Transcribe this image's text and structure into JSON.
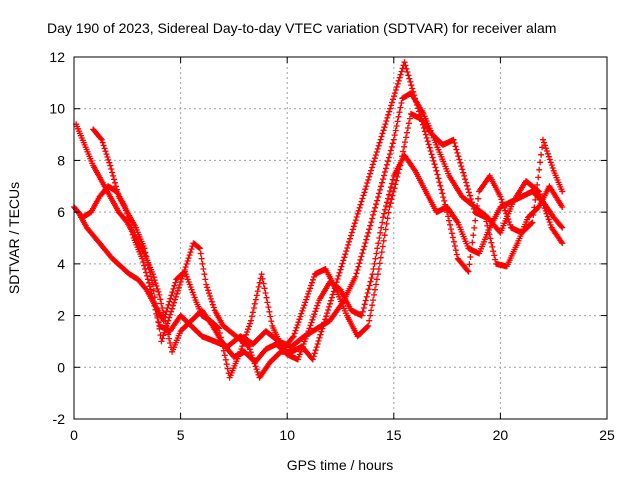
{
  "chart_data": {
    "type": "scatter",
    "title": "Day 190 of 2023, Sidereal Day-to-day VTEC variation (SDTVAR) for receiver alam",
    "xlabel": "GPS time / hours",
    "ylabel": "SDTVAR / TECUs",
    "xlim": [
      0,
      25
    ],
    "ylim": [
      -2,
      12
    ],
    "x_ticks": [
      "0",
      "5",
      "10",
      "15",
      "20",
      "25"
    ],
    "y_ticks": [
      "-2",
      "0",
      "2",
      "4",
      "6",
      "8",
      "10",
      "12"
    ],
    "grid": true,
    "legend": "none",
    "marker": "+",
    "color": "#ff0000",
    "series": [
      {
        "name": "trace-1",
        "x": [
          0.0,
          0.4,
          0.8,
          1.2,
          1.6,
          2.0,
          2.4,
          2.8,
          3.2,
          3.6,
          4.0,
          4.5,
          5.0,
          5.5,
          6.0,
          6.6,
          7.2,
          7.8,
          8.4,
          9.0,
          9.6,
          10.2,
          10.8,
          11.4,
          12.0,
          12.6,
          13.2,
          13.8,
          14.4,
          15.0,
          15.4,
          15.8,
          16.4,
          17.0,
          17.6,
          18.2,
          18.8,
          19.4,
          20.0,
          20.6,
          21.2,
          21.8,
          22.4,
          22.9
        ],
        "y": [
          6.2,
          5.8,
          6.0,
          6.6,
          7.0,
          6.8,
          6.2,
          5.0,
          4.2,
          3.0,
          1.6,
          1.4,
          2.0,
          1.6,
          1.2,
          1.0,
          0.8,
          1.2,
          0.9,
          1.4,
          1.0,
          0.8,
          1.2,
          1.5,
          1.8,
          2.5,
          3.5,
          5.2,
          7.0,
          8.8,
          10.4,
          10.6,
          9.8,
          8.6,
          7.4,
          6.6,
          6.2,
          5.8,
          5.2,
          6.4,
          7.2,
          6.8,
          5.4,
          4.8
        ]
      },
      {
        "name": "trace-2",
        "x": [
          0.1,
          0.5,
          0.9,
          1.3,
          1.7,
          2.1,
          2.5,
          2.9,
          3.3,
          3.7,
          4.0,
          4.6,
          5.0,
          5.5,
          6.0,
          6.5,
          7.0,
          7.5,
          8.0,
          8.5,
          9.0,
          9.5,
          10.0,
          10.5,
          11.0,
          11.5,
          12.0,
          12.5,
          13.0,
          13.5,
          14.0,
          14.5,
          15.0,
          15.5,
          16.0,
          16.5,
          17.0,
          17.5,
          18.0,
          18.5,
          19.0,
          19.5,
          20.0,
          20.5,
          21.0,
          21.5,
          22.0,
          22.5,
          22.9
        ],
        "y": [
          9.4,
          8.6,
          7.8,
          7.2,
          6.6,
          6.0,
          5.6,
          5.0,
          4.4,
          3.6,
          2.8,
          0.6,
          1.4,
          1.8,
          2.2,
          1.6,
          0.9,
          0.4,
          0.6,
          0.2,
          0.7,
          0.9,
          0.5,
          0.3,
          1.4,
          2.6,
          3.3,
          3.0,
          2.2,
          2.0,
          3.6,
          5.8,
          7.4,
          8.2,
          7.6,
          6.8,
          6.0,
          6.2,
          5.6,
          4.6,
          4.4,
          5.4,
          6.2,
          6.4,
          6.6,
          6.8,
          6.4,
          5.8,
          5.4
        ]
      },
      {
        "name": "trace-3",
        "x": [
          0.2,
          0.6,
          1.0,
          1.4,
          1.8,
          2.2,
          2.6,
          3.0,
          3.4,
          3.8,
          4.2,
          4.8,
          5.2,
          5.7,
          6.0,
          6.4,
          6.8,
          7.3,
          7.8,
          8.3,
          8.8,
          9.3,
          9.8,
          10.3,
          10.8,
          11.3,
          11.8,
          12.3,
          12.8,
          13.3,
          13.8,
          14.3,
          14.8,
          15.3,
          15.8,
          16.3,
          16.8,
          17.3,
          17.8,
          18.3,
          18.8,
          19.3,
          19.8,
          20.3,
          20.8,
          21.3,
          21.8,
          22.3,
          22.9
        ],
        "y": [
          6.0,
          5.4,
          5.0,
          4.6,
          4.2,
          3.9,
          3.6,
          3.4,
          3.0,
          2.4,
          1.8,
          3.4,
          3.7,
          2.6,
          2.0,
          1.8,
          1.5,
          -0.4,
          0.6,
          1.8,
          3.6,
          1.6,
          0.7,
          1.2,
          2.4,
          3.6,
          3.8,
          3.0,
          2.0,
          1.2,
          1.6,
          3.8,
          6.2,
          7.8,
          9.8,
          9.6,
          9.0,
          8.6,
          8.8,
          7.4,
          6.0,
          5.8,
          4.0,
          3.9,
          4.8,
          5.8,
          6.2,
          7.0,
          6.2
        ]
      },
      {
        "name": "trace-4",
        "x": [
          0.9,
          1.3,
          1.7,
          2.1,
          2.5,
          2.9,
          3.3,
          3.7,
          4.1,
          5.6,
          5.9,
          6.2,
          6.6,
          7.0,
          7.6,
          8.2,
          8.7,
          9.2,
          9.7,
          10.2,
          10.7,
          11.2,
          15.5,
          16.0,
          16.5,
          17.0,
          17.5,
          18.0,
          18.5,
          19.0,
          19.5,
          20.0,
          20.5,
          21.0,
          21.5,
          22.0,
          22.5,
          22.9
        ],
        "y": [
          9.2,
          8.8,
          7.8,
          6.6,
          6.0,
          5.4,
          4.6,
          3.2,
          1.0,
          4.8,
          4.6,
          3.2,
          2.2,
          1.6,
          1.2,
          0.8,
          -0.4,
          0.2,
          0.6,
          0.6,
          0.8,
          0.3,
          11.8,
          10.4,
          9.0,
          7.6,
          6.0,
          4.2,
          3.7,
          6.8,
          7.4,
          6.6,
          5.4,
          5.2,
          5.6,
          8.8,
          7.6,
          6.8
        ]
      }
    ]
  }
}
